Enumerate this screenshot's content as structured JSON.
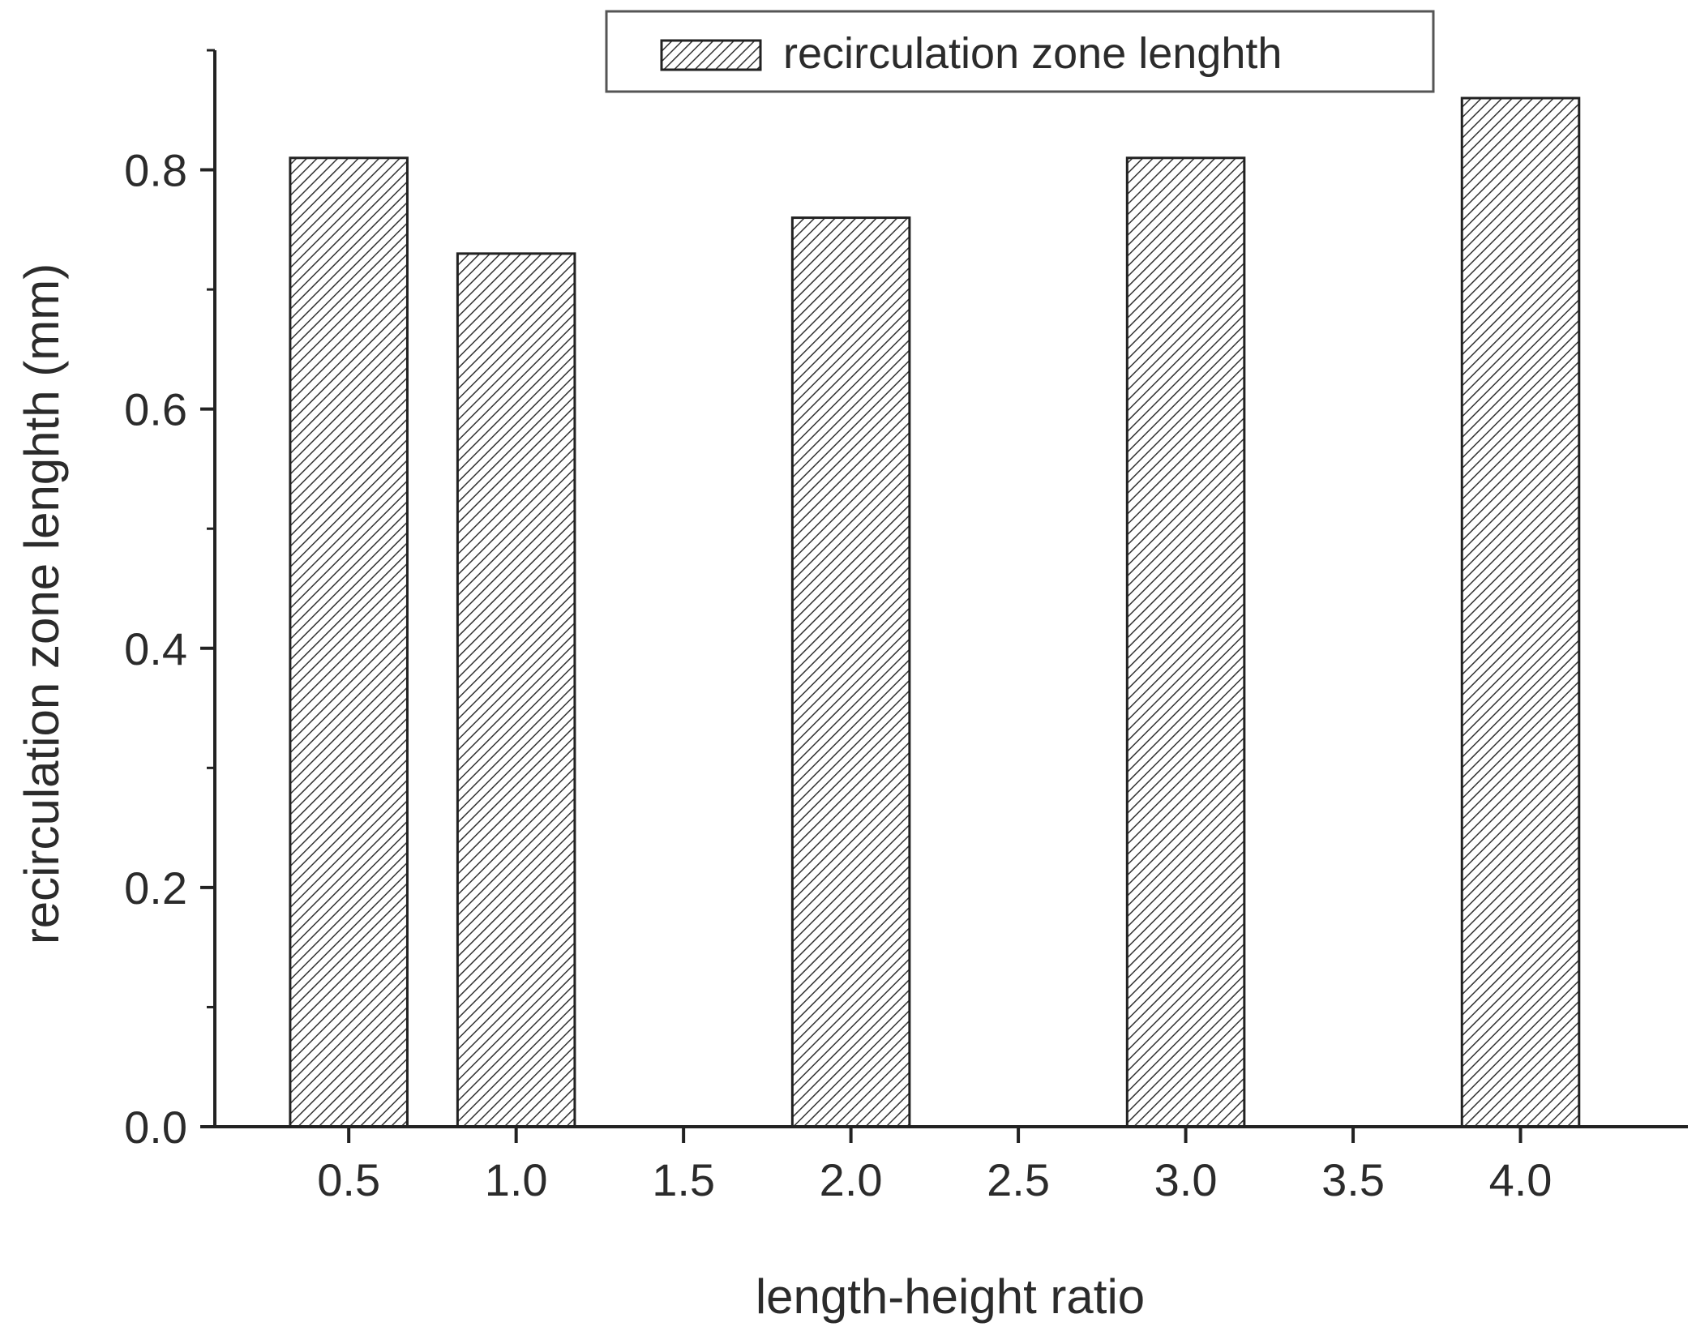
{
  "chart_data": {
    "type": "bar",
    "title": "",
    "xlabel": "length-height ratio",
    "ylabel": "recirculation zone lenghth (mm)",
    "x_ticks": [
      "0.5",
      "1.0",
      "1.5",
      "2.0",
      "2.5",
      "3.0",
      "3.5",
      "4.0"
    ],
    "y_ticks": [
      "0.0",
      "0.2",
      "0.4",
      "0.6",
      "0.8"
    ],
    "xlim": [
      0.1,
      4.5
    ],
    "ylim": [
      0.0,
      0.9
    ],
    "grid": false,
    "legend_position": "top-center",
    "categories": [
      0.5,
      1.0,
      2.0,
      3.0,
      4.0
    ],
    "series": [
      {
        "name": "recirculation zone lenghth",
        "values": [
          0.81,
          0.73,
          0.76,
          0.81,
          0.86
        ],
        "pattern": "diagonal-hatch",
        "fill_color": "#ffffff",
        "hatch_color": "#333333"
      }
    ]
  }
}
